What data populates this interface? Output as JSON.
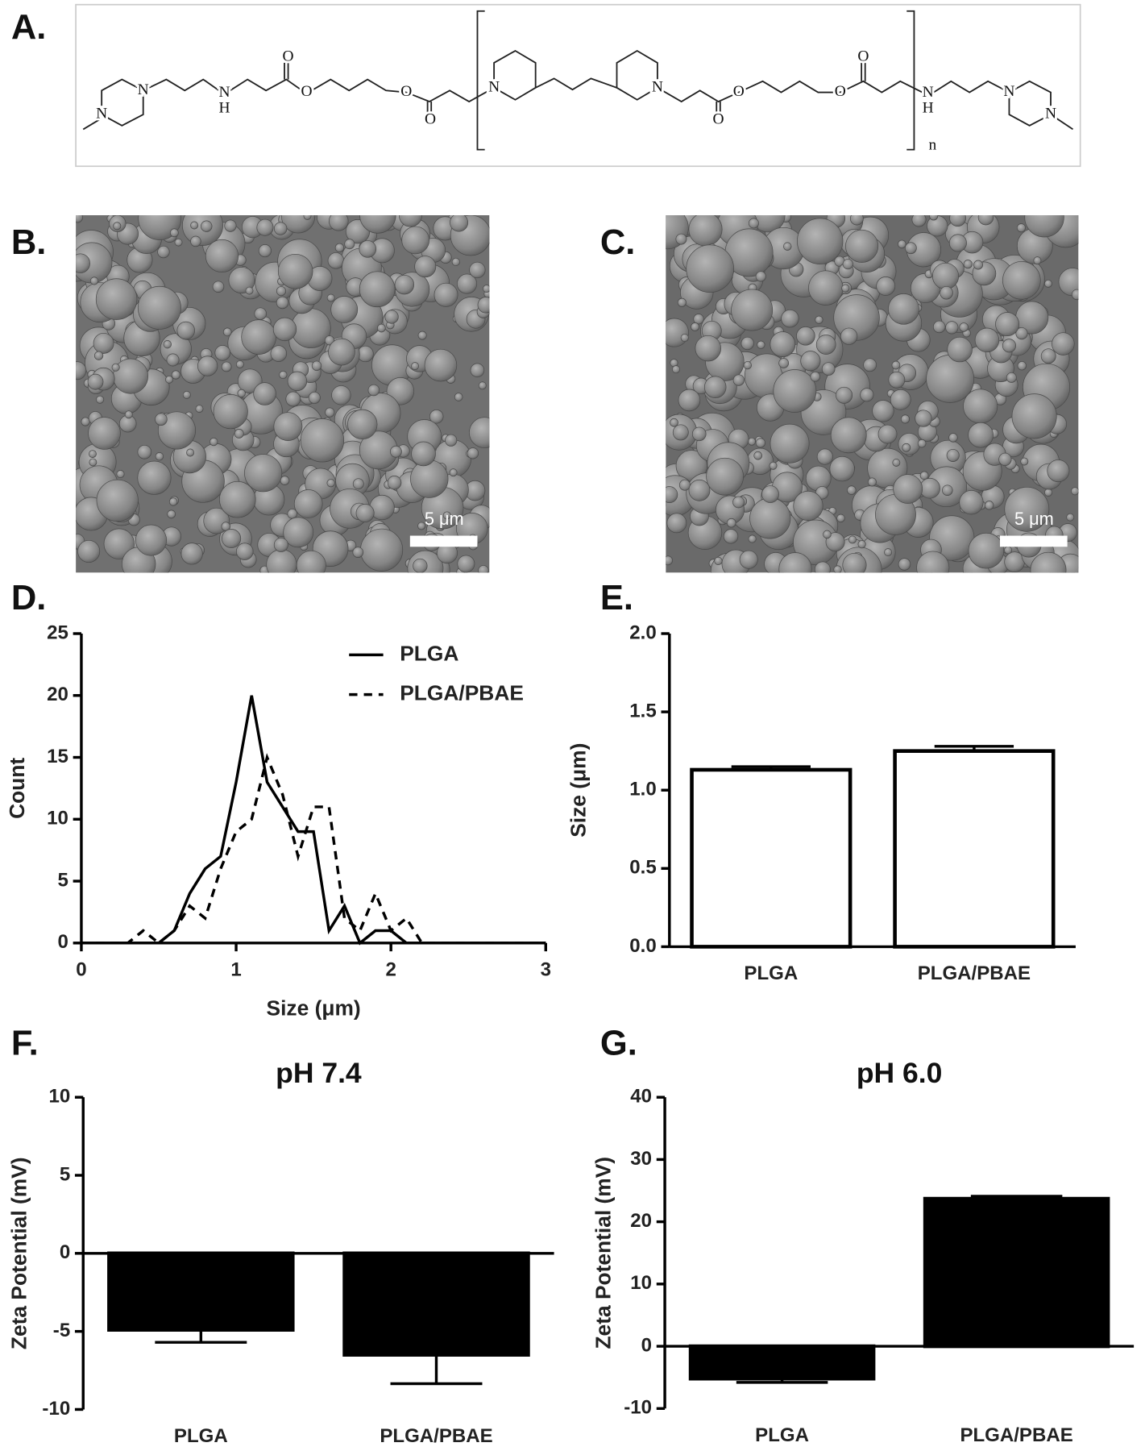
{
  "panel_labels": [
    "A.",
    "B.",
    "C.",
    "D.",
    "E.",
    "F.",
    "G."
  ],
  "structure": {
    "atoms": [
      "N",
      "N",
      "N",
      "H",
      "O",
      "O",
      "O",
      "O",
      "N",
      "N",
      "O",
      "O",
      "O",
      "O",
      "N",
      "H",
      "N",
      "N"
    ],
    "repeat": "n"
  },
  "images": [
    {
      "scale_bar": "5 μm"
    },
    {
      "scale_bar": "5 μm"
    }
  ],
  "chart_data": [
    {
      "type": "line",
      "xlabel": "Size (μm)",
      "ylabel": "Count",
      "x": [
        0,
        0.1,
        0.2,
        0.3,
        0.4,
        0.5,
        0.6,
        0.7,
        0.8,
        0.9,
        1.0,
        1.1,
        1.2,
        1.3,
        1.4,
        1.5,
        1.6,
        1.7,
        1.8,
        1.9,
        2.0,
        2.1,
        2.2,
        2.3,
        2.4,
        2.5,
        2.6,
        2.7,
        2.8,
        2.9,
        3.0
      ],
      "series": [
        {
          "name": "PLGA",
          "color": "#000000",
          "style": "solid",
          "values": [
            0,
            0,
            0,
            0,
            0,
            0,
            1,
            4,
            6,
            7,
            13,
            20,
            13,
            11,
            9,
            9,
            1,
            3,
            0,
            1,
            1,
            0,
            0,
            0,
            0,
            0,
            0,
            0,
            0,
            0,
            0
          ]
        },
        {
          "name": "PLGA/PBAE",
          "color": "#000000",
          "style": "dashed",
          "values": [
            0,
            0,
            0,
            0,
            1,
            0,
            1,
            3,
            2,
            6,
            9,
            10,
            15,
            12,
            7,
            11,
            11,
            2,
            1,
            4,
            1,
            2,
            0,
            0,
            0,
            0,
            0,
            0,
            0,
            0,
            0
          ]
        }
      ],
      "xlim": [
        0,
        3
      ],
      "xticks": [
        0,
        1,
        2,
        3
      ],
      "ylim": [
        0,
        25
      ],
      "yticks": [
        0,
        5,
        10,
        15,
        20,
        25
      ],
      "legend": "upper right"
    },
    {
      "type": "bar",
      "ylabel": "Size (μm)",
      "categories": [
        "PLGA",
        "PLGA/PBAE"
      ],
      "values": [
        1.13,
        1.25
      ],
      "errors": [
        0.02,
        0.03
      ],
      "color": "#ffffff",
      "edge_color": "#000000",
      "ylim": [
        0,
        2
      ],
      "yticks": [
        {
          "value": 0,
          "label": "0.0"
        },
        0.5,
        {
          "value": 1,
          "label": "1.0"
        },
        1.5,
        {
          "value": 2,
          "label": "2.0"
        }
      ]
    },
    {
      "type": "bar",
      "title": "pH 7.4",
      "ylabel": "Zeta Potential (mV)",
      "categories": [
        "PLGA",
        "PLGA/PBAE"
      ],
      "values": [
        -4.9,
        -6.5
      ],
      "errors": [
        0.8,
        1.85
      ],
      "color": "#000000",
      "edge_color": "#000000",
      "ylim": [
        -10,
        10
      ],
      "yticks": [
        -10,
        -5,
        0,
        5,
        10
      ]
    },
    {
      "type": "bar",
      "title": "pH 6.0",
      "ylabel": "Zeta Potential (mV)",
      "categories": [
        "PLGA",
        "PLGA/PBAE"
      ],
      "values": [
        -5.2,
        23.7
      ],
      "errors": [
        0.6,
        0.4
      ],
      "color": "#000000",
      "edge_color": "#000000",
      "ylim": [
        -10,
        40
      ],
      "yticks": [
        -10,
        0,
        10,
        20,
        30,
        40
      ]
    }
  ]
}
